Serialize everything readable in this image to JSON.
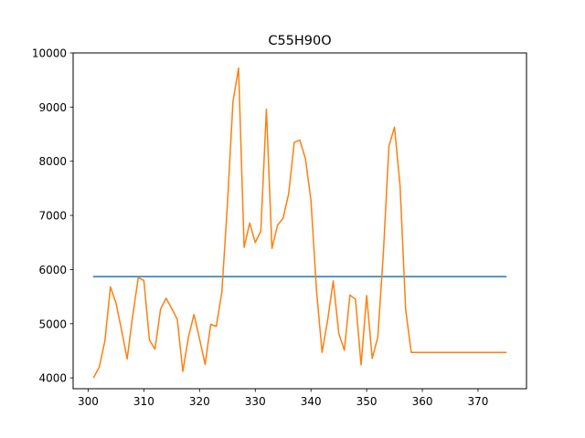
{
  "chart_data": {
    "type": "line",
    "title": "C55H90O",
    "xlabel": "",
    "ylabel": "",
    "xlim": [
      297.3,
      378.7
    ],
    "ylim": [
      3800,
      10000
    ],
    "xticks": [
      300,
      310,
      320,
      330,
      340,
      350,
      360,
      370
    ],
    "yticks": [
      4000,
      5000,
      6000,
      7000,
      8000,
      9000,
      10000
    ],
    "grid": false,
    "legend": "none",
    "series": [
      {
        "color": "#1f77b4",
        "x": [
          301,
          375
        ],
        "y": [
          5870,
          5870
        ]
      },
      {
        "color": "#ff7f0e",
        "x": [
          301,
          302,
          303,
          304,
          305,
          306,
          307,
          308,
          309,
          310,
          311,
          312,
          313,
          314,
          315,
          316,
          317,
          318,
          319,
          320,
          321,
          322,
          323,
          324,
          325,
          326,
          327,
          328,
          329,
          330,
          331,
          332,
          333,
          334,
          335,
          336,
          337,
          338,
          339,
          340,
          341,
          342,
          343,
          344,
          345,
          346,
          347,
          348,
          349,
          350,
          351,
          352,
          353,
          354,
          355,
          356,
          357,
          358,
          359,
          360,
          361,
          362,
          363,
          364,
          365,
          366,
          367,
          368,
          369,
          370,
          371,
          372,
          373,
          374,
          375
        ],
        "y": [
          4010,
          4200,
          4680,
          5680,
          5380,
          4880,
          4350,
          5150,
          5850,
          5800,
          4700,
          4530,
          5270,
          5470,
          5280,
          5080,
          4120,
          4750,
          5170,
          4720,
          4250,
          4990,
          4950,
          5580,
          7200,
          9100,
          9720,
          6410,
          6860,
          6500,
          6710,
          8960,
          6390,
          6820,
          6950,
          7400,
          8350,
          8390,
          8050,
          7280,
          5610,
          4470,
          5070,
          5790,
          4820,
          4510,
          5530,
          5450,
          4240,
          5520,
          4360,
          4750,
          6300,
          8280,
          8630,
          7550,
          5270,
          4470,
          4470,
          4470,
          4470,
          4470,
          4470,
          4470,
          4470,
          4470,
          4470,
          4470,
          4470,
          4470,
          4470,
          4470,
          4470,
          4470,
          4470
        ]
      }
    ]
  }
}
